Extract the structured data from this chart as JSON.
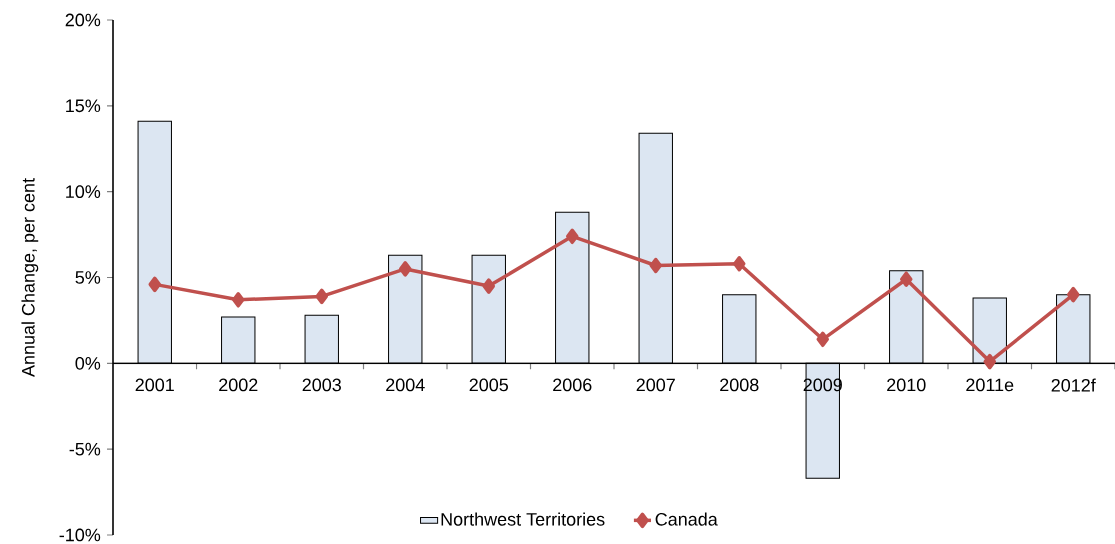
{
  "chart_data": {
    "type": "bar",
    "categories": [
      "2001",
      "2002",
      "2003",
      "2004",
      "2005",
      "2006",
      "2007",
      "2008",
      "2009",
      "2010",
      "2011e",
      "2012f"
    ],
    "series": [
      {
        "name": "Northwest Territories",
        "type": "bar",
        "color": "#dce6f2",
        "values": [
          14.1,
          2.7,
          2.8,
          6.3,
          6.3,
          8.8,
          13.4,
          4.0,
          -6.7,
          5.4,
          3.8,
          4.0
        ]
      },
      {
        "name": "Canada",
        "type": "line",
        "color": "#c0504d",
        "marker": "diamond",
        "values": [
          4.6,
          3.7,
          3.9,
          5.5,
          4.5,
          7.4,
          5.7,
          5.8,
          1.4,
          4.9,
          0.1,
          4.0
        ]
      }
    ],
    "ylabel": "Annual Change, per cent",
    "ylim": [
      -10,
      20
    ],
    "yticks": [
      {
        "value": -10,
        "label": "-10%"
      },
      {
        "value": -5,
        "label": "-5%"
      },
      {
        "value": 0,
        "label": "0%"
      },
      {
        "value": 5,
        "label": "5%"
      },
      {
        "value": 10,
        "label": "10%"
      },
      {
        "value": 15,
        "label": "15%"
      },
      {
        "value": 20,
        "label": "20%"
      }
    ],
    "legend": "bottom"
  }
}
